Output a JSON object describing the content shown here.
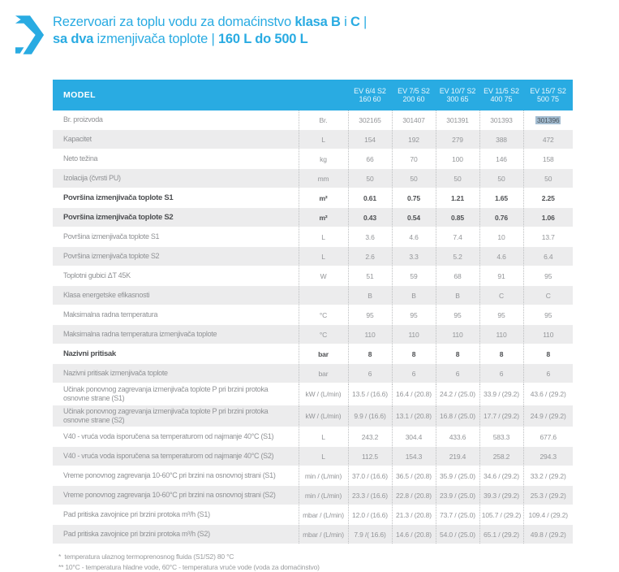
{
  "accent_color": "#29abe2",
  "selection_color": "#a4bdd1",
  "shade_color": "#ececed",
  "title": {
    "line1": [
      "Rezervoari za toplu vodu za domaćinstvo ",
      "klasa B",
      " i ",
      "C",
      " |"
    ],
    "line2": [
      "sa dva",
      "  izmenjivača toplote | ",
      "160 L do 500 L"
    ]
  },
  "table": {
    "model_header": "MODEL",
    "columns": [
      {
        "name": "EV 6/4 S2",
        "size": "160 60"
      },
      {
        "name": "EV 7/5 S2",
        "size": "200 60"
      },
      {
        "name": "EV 10/7 S2",
        "size": "300 65"
      },
      {
        "name": "EV 11/5 S2",
        "size": "400 75"
      },
      {
        "name": "EV 15/7 S2",
        "size": "500 75"
      }
    ],
    "highlight": {
      "row": 0,
      "col": 4
    },
    "rows": [
      {
        "label": "Br. proizvoda",
        "unit": "Br.",
        "bold": false,
        "values": [
          "302165",
          "301407",
          "301391",
          "301393",
          "301396"
        ]
      },
      {
        "label": "Kapacitet",
        "unit": "L",
        "bold": false,
        "values": [
          "154",
          "192",
          "279",
          "388",
          "472"
        ]
      },
      {
        "label": "Neto težina",
        "unit": "kg",
        "bold": false,
        "values": [
          "66",
          "70",
          "100",
          "146",
          "158"
        ]
      },
      {
        "label": "Izolacija (čvrsti PU)",
        "unit": "mm",
        "bold": false,
        "values": [
          "50",
          "50",
          "50",
          "50",
          "50"
        ]
      },
      {
        "label": "Površina izmenjivača toplote S1",
        "unit": "m²",
        "bold": true,
        "values": [
          "0.61",
          "0.75",
          "1.21",
          "1.65",
          "2.25"
        ]
      },
      {
        "label": "Površina izmenjivača toplote S2",
        "unit": "m²",
        "bold": true,
        "values": [
          "0.43",
          "0.54",
          "0.85",
          "0.76",
          "1.06"
        ]
      },
      {
        "label": "Površina izmenjivača toplote  S1",
        "unit": "L",
        "bold": false,
        "values": [
          "3.6",
          "4.6",
          "7.4",
          "10",
          "13.7"
        ]
      },
      {
        "label": "Površina izmenjivača toplote  S2",
        "unit": "L",
        "bold": false,
        "values": [
          "2.6",
          "3.3",
          "5.2",
          "4.6",
          "6.4"
        ]
      },
      {
        "label": "Toplotni gubici ΔT 45K",
        "unit": "W",
        "bold": false,
        "values": [
          "51",
          "59",
          "68",
          "91",
          "95"
        ]
      },
      {
        "label": "Klasa energetske efikasnosti",
        "unit": "",
        "bold": false,
        "values": [
          "B",
          "B",
          "B",
          "C",
          "C"
        ]
      },
      {
        "label": "Maksimalna radna temperatura",
        "unit": "°C",
        "bold": false,
        "values": [
          "95",
          "95",
          "95",
          "95",
          "95"
        ]
      },
      {
        "label": "Maksimalna radna temperatura izmenjivača toplote",
        "unit": "°C",
        "bold": false,
        "values": [
          "110",
          "110",
          "110",
          "110",
          "110"
        ]
      },
      {
        "label": "Nazivni pritisak",
        "unit": "bar",
        "bold": true,
        "values": [
          "8",
          "8",
          "8",
          "8",
          "8"
        ]
      },
      {
        "label": "Nazivni pritisak izmenjivača toplote",
        "unit": "bar",
        "bold": false,
        "values": [
          "6",
          "6",
          "6",
          "6",
          "6"
        ]
      },
      {
        "label": "Učinak ponovnog zagrevanja izmenjivača toplote P pri brzini protoka osnovne strane  (S1)",
        "unit": "kW / (L/min)",
        "bold": false,
        "values": [
          "13.5 / (16.6)",
          "16.4 / (20.8)",
          "24.2 / (25.0)",
          "33.9 / (29.2)",
          "43.6 / (29.2)"
        ]
      },
      {
        "label": "Učinak ponovnog zagrevanja izmenjivača toplote P pri brzini protoka osnovne strane (S2)",
        "unit": "kW / (L/min)",
        "bold": false,
        "values": [
          "9.9 / (16.6)",
          "13.1 / (20.8)",
          "16.8 / (25.0)",
          "17.7 / (29.2)",
          "24.9 / (29.2)"
        ]
      },
      {
        "label": "V40 - vruća voda isporučena sa temperaturom od najmanje  40°C (S1)",
        "unit": "L",
        "bold": false,
        "values": [
          "243.2",
          "304.4",
          "433.6",
          "583.3",
          "677.6"
        ]
      },
      {
        "label": "V40 - vruća voda isporučena sa temperaturom od najmanje  40°C (S2)",
        "unit": "L",
        "bold": false,
        "values": [
          "112.5",
          "154.3",
          "219.4",
          "258.2",
          "294.3"
        ]
      },
      {
        "label": "Vreme ponovnog zagrevanja 10-60°C pri brzini na osnovnoj strani (S1)",
        "unit": "min / (L/min)",
        "bold": false,
        "values": [
          "37.0 / (16.6)",
          "36.5 / (20.8)",
          "35.9 / (25.0)",
          "34.6 / (29.2)",
          "33.2 / (29.2)"
        ]
      },
      {
        "label": "Vreme ponovnog zagrevanja 10-60°C pri brzini na osnovnoj strani  (S2)",
        "unit": "min / (L/min)",
        "bold": false,
        "values": [
          "23.3 / (16.6)",
          "22.8 / (20.8)",
          "23.9 / (25.0)",
          "39.3 / (29.2)",
          "25.3 / (29.2)"
        ]
      },
      {
        "label": "Pad pritiska zavojnice pri brzini protoka m³/h (S1)",
        "unit": "mbar / (L/min)",
        "bold": false,
        "values": [
          "12.0 / (16.6)",
          "21.3 / (20.8)",
          "73.7 / (25.0)",
          "105.7 / (29.2)",
          "109.4 / (29.2)"
        ]
      },
      {
        "label": "Pad pritiska zavojnice pri brzini protoka m³/h (S2)",
        "unit": "mbar / (L/min)",
        "bold": false,
        "values": [
          "7.9 /( 16.6)",
          "14.6 / (20.8)",
          "54.0 / (25.0)",
          "65.1 / (29.2)",
          "49.8 / (29.2)"
        ]
      }
    ]
  },
  "footnotes": [
    "*  temperatura ulaznog termoprenosnog fluida (S1/S2) 80 °C",
    "** 10°C - temperatura hladne vode, 60°C - temperatura vruće vode (voda za domaćinstvo)"
  ]
}
